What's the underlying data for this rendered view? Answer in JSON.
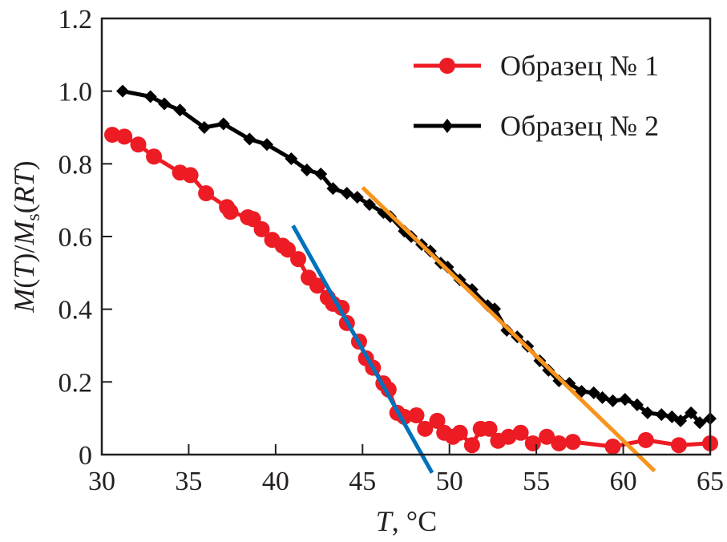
{
  "chart_data": {
    "type": "line",
    "title": "",
    "xlabel": "T, °C",
    "xlabel_parts": {
      "var": "T",
      "rest": ", °C"
    },
    "ylabel": "M(T)/Ms(RT)",
    "ylabel_parts": {
      "m1": "M",
      "p1": "(",
      "t1": "T",
      "p2": ")/",
      "m2": "M",
      "sub": "s",
      "p3": "(",
      "rt": "RT",
      "p4": ")"
    },
    "xlim": [
      30,
      65
    ],
    "ylim": [
      0,
      1.2
    ],
    "xticks": [
      30,
      35,
      40,
      45,
      50,
      55,
      60,
      65
    ],
    "xtick_labels": [
      "30",
      "35",
      "40",
      "45",
      "50",
      "55",
      "60",
      "65"
    ],
    "yticks": [
      0,
      0.2,
      0.4,
      0.6,
      0.8,
      1.0,
      1.2
    ],
    "ytick_labels": [
      "0",
      "0.2",
      "0.4",
      "0.6",
      "0.8",
      "1.0",
      "1.2"
    ],
    "grid": false,
    "legend_position": "top-right",
    "series": [
      {
        "name": "Образец № 1",
        "color": "#ed1c24",
        "marker": "circle",
        "x": [
          30.6,
          31.3,
          32.1,
          33.0,
          34.5,
          35.1,
          36.0,
          37.2,
          37.4,
          38.4,
          38.7,
          39.2,
          39.8,
          40.4,
          40.7,
          41.3,
          41.9,
          42.4,
          43.0,
          43.3,
          43.8,
          44.1,
          44.8,
          45.2,
          45.6,
          46.2,
          46.5,
          47.0,
          47.4,
          48.1,
          48.6,
          49.3,
          49.7,
          50.2,
          50.6,
          51.3,
          51.8,
          52.3,
          52.8,
          53.4,
          54.1,
          54.8,
          55.6,
          56.3,
          57.1,
          59.4,
          61.3,
          63.2,
          65.0
        ],
        "y": [
          0.88,
          0.875,
          0.853,
          0.82,
          0.776,
          0.769,
          0.719,
          0.681,
          0.668,
          0.653,
          0.648,
          0.62,
          0.591,
          0.575,
          0.564,
          0.538,
          0.487,
          0.465,
          0.432,
          0.415,
          0.404,
          0.362,
          0.311,
          0.265,
          0.239,
          0.196,
          0.179,
          0.115,
          0.104,
          0.108,
          0.071,
          0.093,
          0.06,
          0.049,
          0.06,
          0.026,
          0.071,
          0.071,
          0.038,
          0.049,
          0.06,
          0.031,
          0.049,
          0.031,
          0.035,
          0.022,
          0.04,
          0.026,
          0.031
        ]
      },
      {
        "name": "Образец № 2",
        "color": "#000000",
        "marker": "diamond",
        "x": [
          31.2,
          32.8,
          33.6,
          34.5,
          35.9,
          37.0,
          38.5,
          39.5,
          40.9,
          41.8,
          42.6,
          43.3,
          44.1,
          44.7,
          45.4,
          46.2,
          46.6,
          47.4,
          47.8,
          48.4,
          48.9,
          49.5,
          49.9,
          50.6,
          51.3,
          52.2,
          52.6,
          53.3,
          53.9,
          54.5,
          55.2,
          55.7,
          56.3,
          56.9,
          57.6,
          58.3,
          58.8,
          59.4,
          60.1,
          60.8,
          61.4,
          62.2,
          62.8,
          63.3,
          63.9,
          64.4,
          65.0
        ],
        "y": [
          1.0,
          0.985,
          0.965,
          0.948,
          0.9,
          0.91,
          0.868,
          0.853,
          0.814,
          0.783,
          0.772,
          0.732,
          0.719,
          0.708,
          0.688,
          0.666,
          0.655,
          0.615,
          0.6,
          0.578,
          0.56,
          0.527,
          0.516,
          0.481,
          0.454,
          0.41,
          0.401,
          0.342,
          0.324,
          0.298,
          0.258,
          0.232,
          0.203,
          0.196,
          0.174,
          0.17,
          0.157,
          0.148,
          0.152,
          0.137,
          0.115,
          0.11,
          0.104,
          0.093,
          0.115,
          0.088,
          0.099
        ]
      }
    ],
    "fit_lines": [
      {
        "name": "fit-line-sample-1",
        "color": "#0072bc",
        "x": [
          41.0,
          49.0
        ],
        "y": [
          0.63,
          -0.05
        ]
      },
      {
        "name": "fit-line-sample-2",
        "color": "#f7941d",
        "x": [
          45.0,
          61.8
        ],
        "y": [
          0.735,
          -0.045
        ]
      }
    ]
  }
}
